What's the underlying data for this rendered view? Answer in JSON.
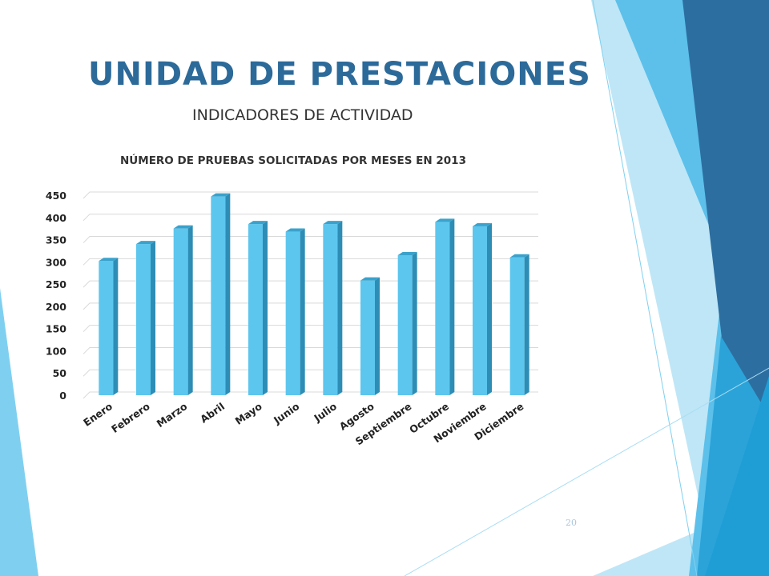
{
  "slide": {
    "title": "UNIDAD DE PRESTACIONES",
    "subtitle": "INDICADORES DE ACTIVIDAD",
    "page_number": "20"
  },
  "colors": {
    "title": "#2c6a9a",
    "bar_front": "#5cc6ee",
    "bar_side": "#2d8db5",
    "bar_top": "#3aa2cc",
    "grid": "#d9d9d9",
    "deco_dark": "#2d6ea0",
    "deco_light": "#7fd0f0"
  },
  "chart_data": {
    "type": "bar",
    "title": "NÚMERO DE PRUEBAS SOLICITADAS POR MESES EN 2013",
    "xlabel": "",
    "ylabel": "",
    "ylim": [
      0,
      450
    ],
    "yticks": [
      0,
      50,
      100,
      150,
      200,
      250,
      300,
      350,
      400,
      450
    ],
    "grid": true,
    "legend": "none",
    "categories": [
      "Enero",
      "Febrero",
      "Marzo",
      "Abril",
      "Mayo",
      "Junio",
      "Julio",
      "Agosto",
      "Septiembre",
      "Octubre",
      "Noviembre",
      "Diciembre"
    ],
    "values": [
      302,
      340,
      375,
      447,
      385,
      368,
      385,
      258,
      315,
      390,
      380,
      310
    ]
  }
}
